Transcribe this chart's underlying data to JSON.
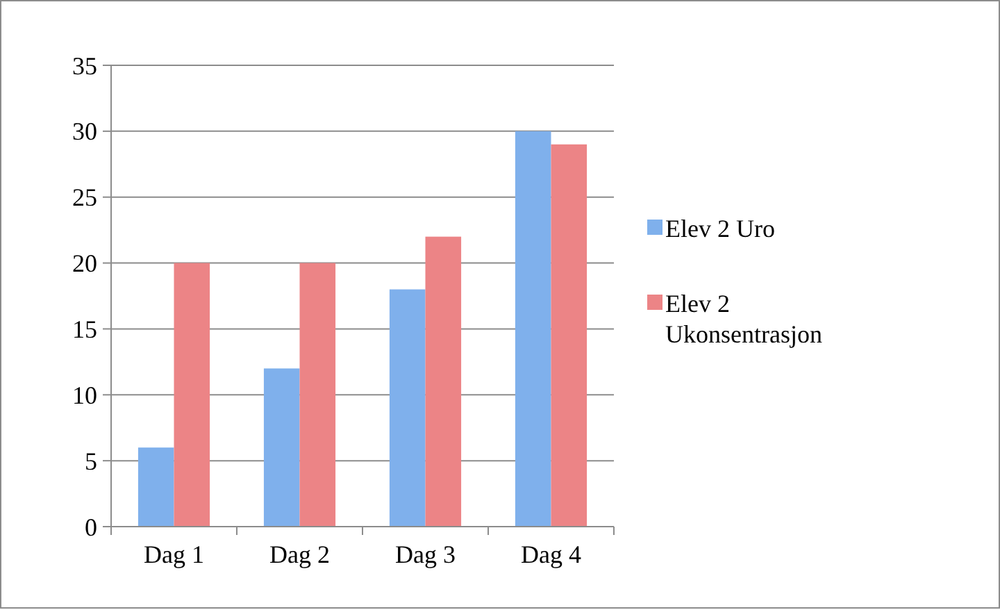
{
  "chart_data": {
    "type": "bar",
    "categories": [
      "Dag 1",
      "Dag 2",
      "Dag 3",
      "Dag 4"
    ],
    "series": [
      {
        "name": "Elev 2 Uro",
        "color": "#7fb0ec",
        "values": [
          6,
          12,
          18,
          30
        ]
      },
      {
        "name": "Elev 2 Ukonsentrasjon",
        "color": "#ec8486",
        "values": [
          20,
          20,
          22,
          29
        ]
      }
    ],
    "ylim": [
      0,
      35
    ],
    "yticks": [
      0,
      5,
      10,
      15,
      20,
      25,
      30,
      35
    ],
    "grid": "y",
    "legend": "right"
  }
}
